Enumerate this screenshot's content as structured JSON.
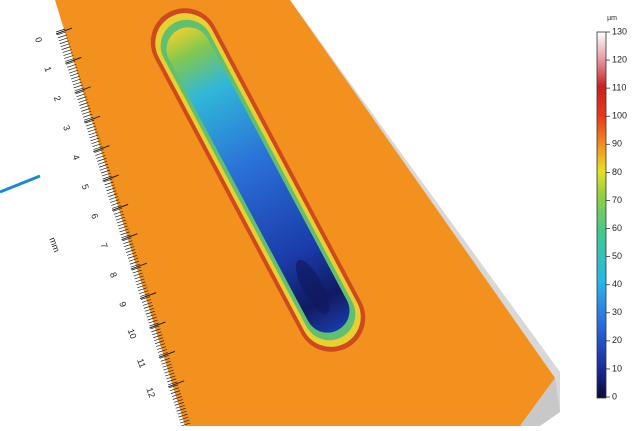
{
  "colorbar": {
    "unit": "µm",
    "ticks": [
      0,
      10,
      20,
      30,
      40,
      50,
      60,
      70,
      80,
      90,
      100,
      110,
      120,
      130
    ]
  },
  "ruler": {
    "unit": "mm",
    "ticks": [
      0,
      1,
      2,
      3,
      4,
      5,
      6,
      7,
      8,
      9,
      10,
      11,
      12
    ]
  }
}
